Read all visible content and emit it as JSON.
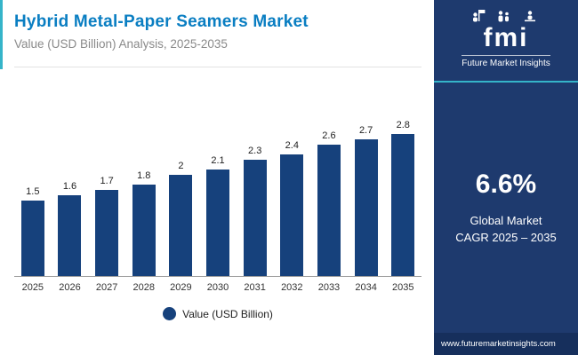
{
  "header": {
    "title": "Hybrid Metal-Paper Seamers Market",
    "subtitle": "Value (USD Billion) Analysis, 2025-2035"
  },
  "chart_data": {
    "type": "bar",
    "categories": [
      "2025",
      "2026",
      "2027",
      "2028",
      "2029",
      "2030",
      "2031",
      "2032",
      "2033",
      "2034",
      "2035"
    ],
    "values": [
      1.5,
      1.6,
      1.7,
      1.8,
      2,
      2.1,
      2.3,
      2.4,
      2.6,
      2.7,
      2.8
    ],
    "value_labels": [
      "1.5",
      "1.6",
      "1.7",
      "1.8",
      "2",
      "2.1",
      "2.3",
      "2.4",
      "2.6",
      "2.7",
      "2.8"
    ],
    "title": "Hybrid Metal-Paper Seamers Market",
    "xlabel": "",
    "ylabel": "Value (USD Billion)",
    "ylim": [
      0,
      3
    ],
    "legend": "Value (USD Billion)",
    "legend_position": "bottom",
    "grid": false,
    "bar_color": "#16417c"
  },
  "sidebar": {
    "logo_text": "fmi",
    "logo_subtext": "Future Market Insights",
    "stat": "6.6%",
    "stat_label_line1": "Global Market",
    "stat_label_line2": "CAGR 2025 – 2035",
    "website": "www.futuremarketinsights.com"
  },
  "colors": {
    "accent_teal": "#35b4c9",
    "navy_sidebar": "#1e3a6e",
    "title_blue": "#0a7ec2",
    "bar_navy": "#16417c"
  }
}
